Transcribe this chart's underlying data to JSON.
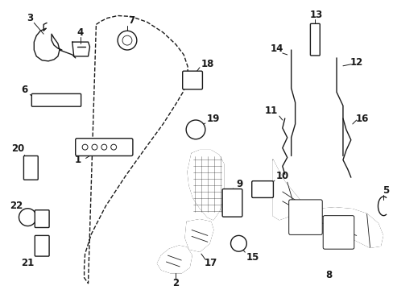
{
  "bg_color": "#ffffff",
  "line_color": "#1a1a1a",
  "fig_width": 4.89,
  "fig_height": 3.6,
  "dpi": 100,
  "label_fs": 8.5,
  "lw": 1.0
}
